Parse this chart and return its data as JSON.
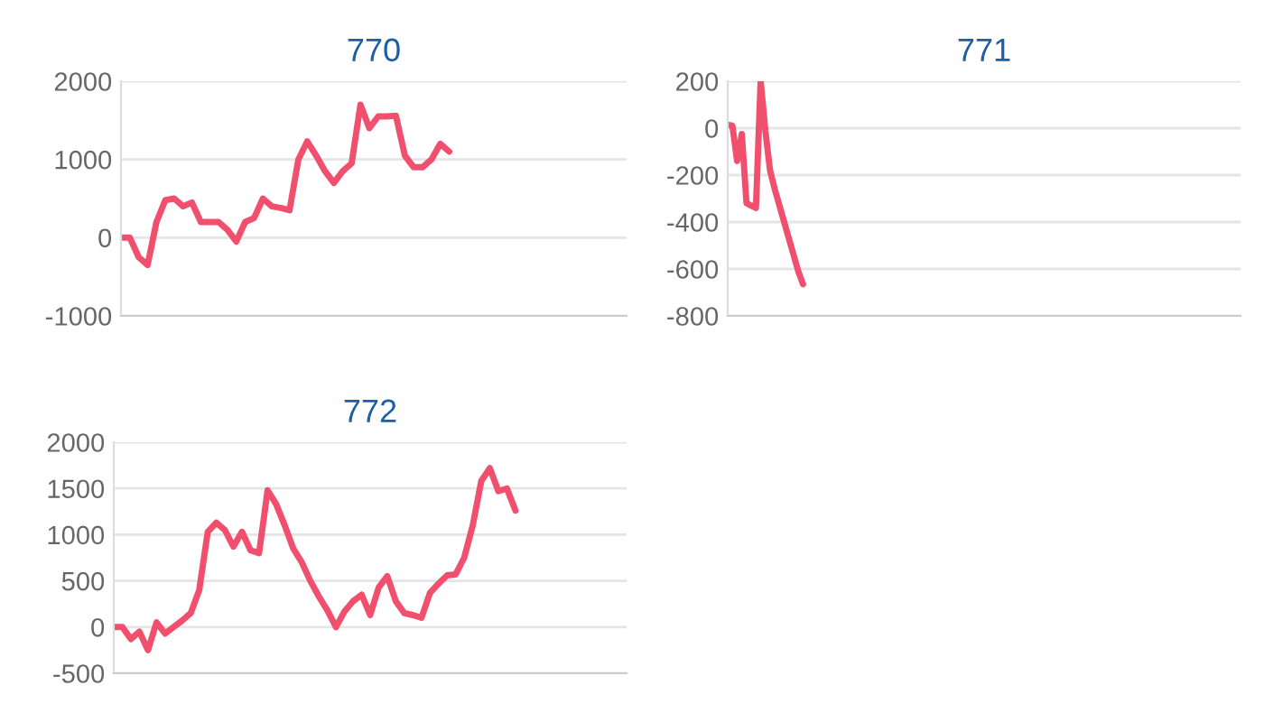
{
  "chart_data": [
    {
      "type": "line",
      "title": "770",
      "categories": [
        null,
        null,
        null,
        null,
        null,
        null,
        null,
        null,
        null,
        null,
        null,
        null,
        null,
        null,
        null,
        null,
        null,
        null,
        null,
        null,
        null,
        null,
        null,
        null,
        null,
        null,
        null,
        null,
        null,
        null,
        null,
        null,
        null,
        null,
        null,
        null,
        null,
        null,
        null,
        null,
        null,
        null,
        null,
        null,
        null,
        null,
        null,
        null,
        null,
        null,
        null,
        null,
        null,
        null,
        null,
        null,
        null,
        null
      ],
      "series": [
        {
          "color": "#f0506e",
          "values": [
            0,
            0,
            -250,
            -350,
            200,
            480,
            500,
            400,
            450,
            200,
            200,
            200,
            100,
            -50,
            200,
            250,
            500,
            400,
            380,
            350,
            1000,
            1230,
            1050,
            850,
            700,
            850,
            950,
            1700,
            1400,
            1550,
            1550,
            1560,
            1050,
            900,
            900,
            1000,
            1200,
            1100,
            null,
            null,
            null,
            null,
            null,
            null,
            null,
            null,
            null,
            null,
            null,
            null,
            null,
            null,
            null,
            null,
            null,
            null,
            null,
            null
          ]
        }
      ],
      "ylim": [
        -1000,
        2000
      ],
      "yticks": [
        -1000,
        0,
        1000,
        2000
      ],
      "grid": "y",
      "tick_labels": "y",
      "marker": "none",
      "line_style": "solid"
    },
    {
      "type": "line",
      "title": "771",
      "categories": [
        null,
        null,
        null,
        null,
        null,
        null,
        null,
        null,
        null,
        null,
        null,
        null,
        null,
        null,
        null,
        null,
        null,
        null,
        null,
        null,
        null,
        null,
        null,
        null,
        null,
        null,
        null,
        null,
        null,
        null,
        null,
        null,
        null,
        null,
        null,
        null,
        null,
        null,
        null,
        null,
        null,
        null,
        null,
        null,
        null,
        null,
        null,
        null,
        null,
        null,
        null,
        null,
        null,
        null,
        null,
        null,
        null,
        null,
        null,
        null,
        null,
        null,
        null,
        null,
        null,
        null,
        null,
        null,
        null,
        null,
        null,
        null,
        null,
        null,
        null,
        null,
        null,
        null,
        null,
        null,
        null,
        null,
        null,
        null,
        null,
        null,
        null,
        null,
        null,
        null,
        null,
        null,
        null,
        null,
        null,
        null,
        null,
        null,
        null,
        null,
        null,
        null,
        null,
        null,
        null,
        null,
        null,
        null,
        null,
        null
      ],
      "series": [
        {
          "color": "#f0506e",
          "values": [
            15,
            10,
            -140,
            -25,
            -320,
            -330,
            -340,
            200,
            -10,
            -180,
            -260,
            -330,
            -400,
            -470,
            -540,
            -610,
            -665,
            null,
            null,
            null,
            null,
            null,
            null,
            null,
            null,
            null,
            null,
            null,
            null,
            null,
            null,
            null,
            null,
            null,
            null,
            null,
            null,
            null,
            null,
            null,
            null,
            null,
            null,
            null,
            null,
            null,
            null,
            null,
            null,
            null,
            null,
            null,
            null,
            null,
            null,
            null,
            null,
            null,
            null,
            null,
            null,
            null,
            null,
            null,
            null,
            null,
            null,
            null,
            null,
            null,
            null,
            null,
            null,
            null,
            null,
            null,
            null,
            null,
            null,
            null,
            null,
            null,
            null,
            null,
            null,
            null,
            null,
            null,
            null,
            null,
            null,
            null,
            null,
            null,
            null,
            null,
            null,
            null,
            null,
            null,
            null,
            null,
            null,
            null,
            null,
            null,
            null,
            null,
            null,
            null
          ]
        }
      ],
      "ylim": [
        -800,
        200
      ],
      "yticks": [
        -800,
        -600,
        -400,
        -200,
        0,
        200
      ],
      "grid": "y",
      "tick_labels": "y",
      "marker": "none",
      "line_style": "solid"
    },
    {
      "type": "line",
      "title": "772",
      "categories": [
        null,
        null,
        null,
        null,
        null,
        null,
        null,
        null,
        null,
        null,
        null,
        null,
        null,
        null,
        null,
        null,
        null,
        null,
        null,
        null,
        null,
        null,
        null,
        null,
        null,
        null,
        null,
        null,
        null,
        null,
        null,
        null,
        null,
        null,
        null,
        null,
        null,
        null,
        null,
        null,
        null,
        null,
        null,
        null,
        null,
        null,
        null,
        null,
        null,
        null,
        null,
        null,
        null,
        null,
        null,
        null,
        null,
        null,
        null,
        null,
        null
      ],
      "series": [
        {
          "color": "#f0506e",
          "values": [
            0,
            0,
            -130,
            -50,
            -250,
            50,
            -70,
            0,
            70,
            150,
            400,
            1030,
            1130,
            1050,
            870,
            1030,
            830,
            800,
            1480,
            1330,
            1100,
            850,
            700,
            500,
            330,
            180,
            0,
            170,
            280,
            350,
            130,
            430,
            550,
            280,
            150,
            130,
            100,
            370,
            470,
            560,
            570,
            750,
            1100,
            1580,
            1720,
            1470,
            1500,
            1260,
            null,
            null,
            null,
            null,
            null,
            null,
            null,
            null,
            null,
            null,
            null,
            null,
            null
          ]
        }
      ],
      "ylim": [
        -500,
        2000
      ],
      "yticks": [
        -500,
        0,
        500,
        1000,
        1500,
        2000
      ],
      "grid": "y",
      "tick_labels": "y",
      "marker": "none",
      "line_style": "solid"
    }
  ]
}
